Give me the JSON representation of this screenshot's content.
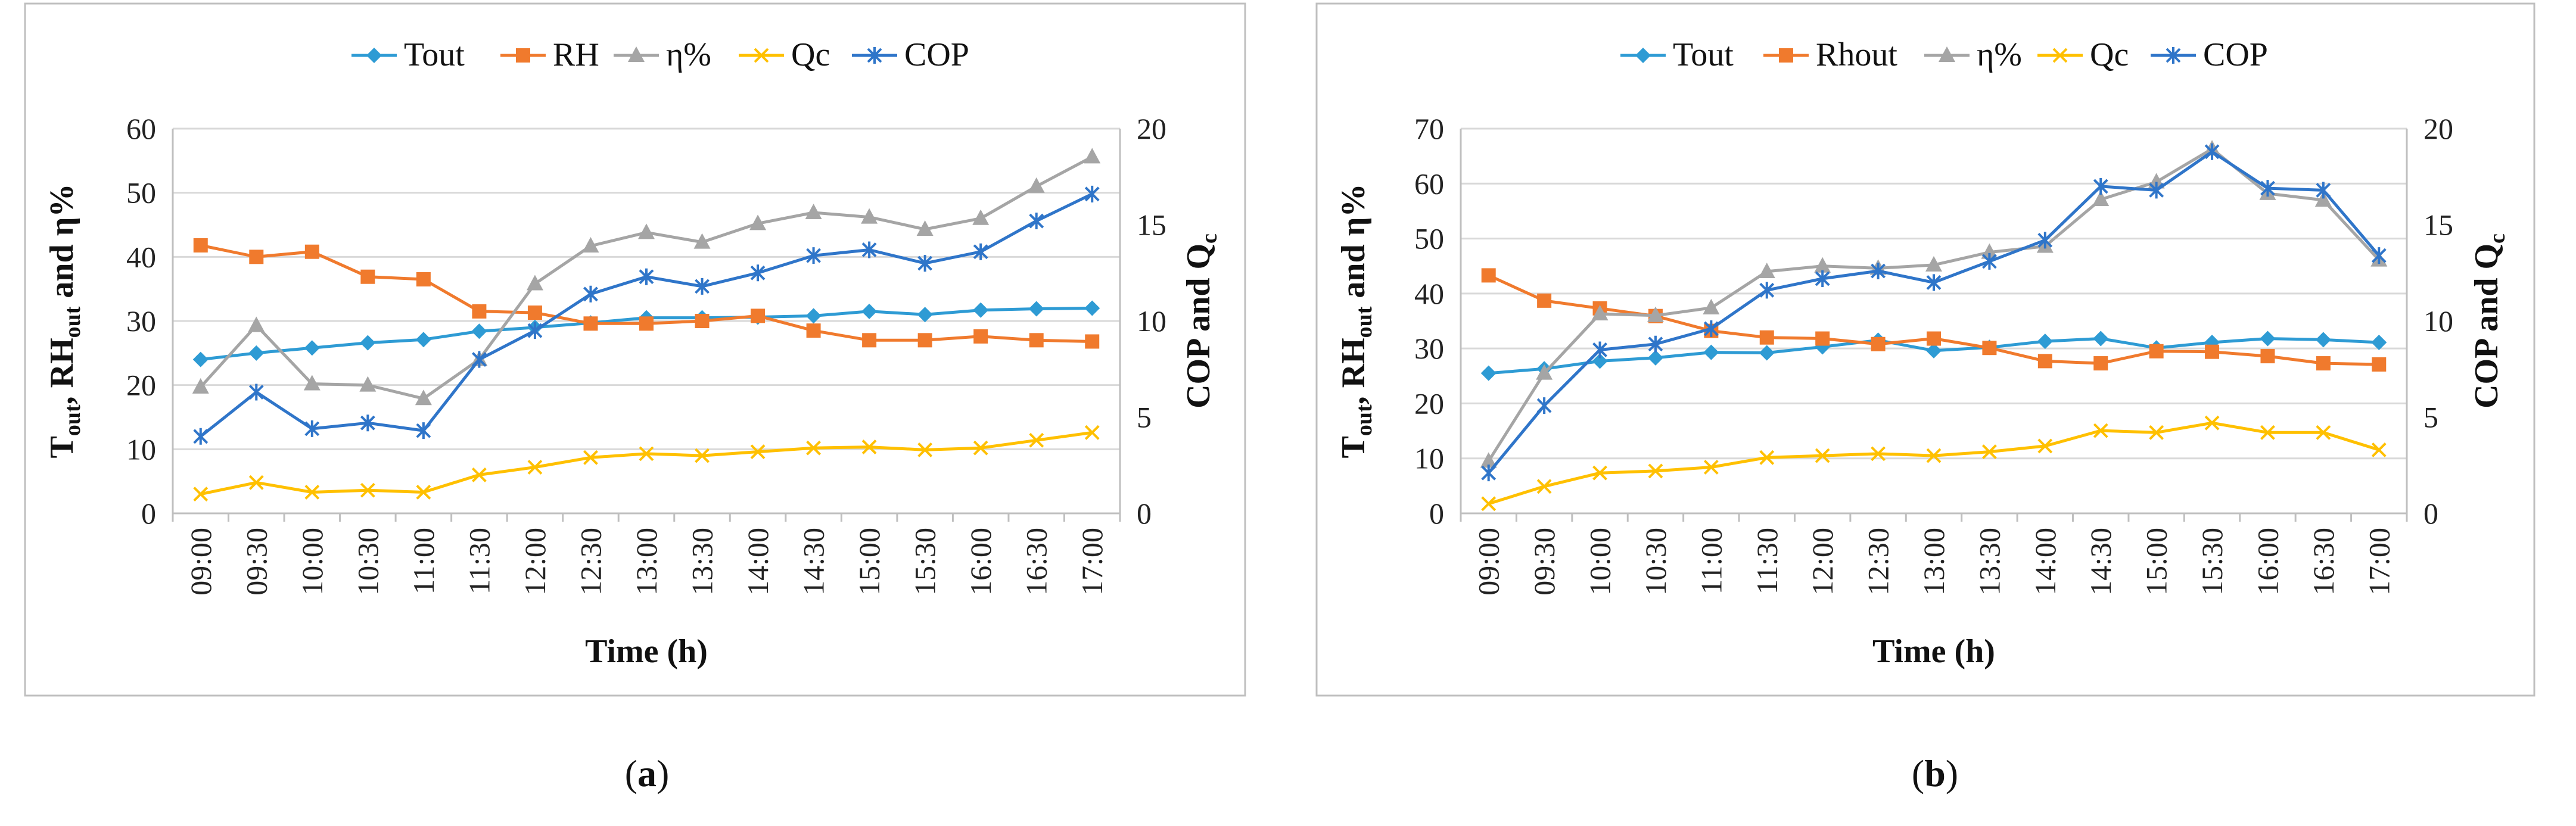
{
  "chart_data": [
    {
      "type": "line",
      "panel_label": "a",
      "categories": [
        "09:00",
        "09:30",
        "10:00",
        "10:30",
        "11:00",
        "11:30",
        "12:00",
        "12:30",
        "13:00",
        "13:30",
        "14:00",
        "14:30",
        "15:00",
        "15:30",
        "16:00",
        "16:30",
        "17:00"
      ],
      "xlabel": "Time (h)",
      "ylabel_left": {
        "parts": [
          "T",
          "out",
          ", RH",
          "out",
          " and η%"
        ]
      },
      "ylabel_right": {
        "parts": [
          "COP and Q",
          "c"
        ]
      },
      "ylim_left": [
        0,
        60
      ],
      "yticks_left": [
        0,
        10,
        20,
        30,
        40,
        50,
        60
      ],
      "ylim_right": [
        0,
        20
      ],
      "yticks_right": [
        0,
        5,
        10,
        15,
        20
      ],
      "legend_position": "top",
      "series": [
        {
          "name": "Tout",
          "axis": "left",
          "color": "#2e9bd4",
          "marker": "diamond",
          "values": [
            24,
            25,
            25.8,
            26.6,
            27.1,
            28.4,
            29,
            29.7,
            30.5,
            30.5,
            30.6,
            30.8,
            31.5,
            31,
            31.7,
            31.9,
            32
          ]
        },
        {
          "name": "RH",
          "axis": "left",
          "color": "#f07a2d",
          "marker": "square",
          "values": [
            41.8,
            40,
            40.8,
            36.9,
            36.5,
            31.5,
            31.3,
            29.6,
            29.6,
            30,
            30.8,
            28.5,
            27,
            27,
            27.6,
            27,
            26.8
          ]
        },
        {
          "name": "η%",
          "axis": "left",
          "color": "#a5a5a5",
          "marker": "triangle",
          "values": [
            19.7,
            29.3,
            20.2,
            20,
            17.9,
            24,
            35.8,
            41.7,
            43.8,
            42.3,
            45.2,
            46.9,
            46.2,
            44.3,
            46,
            51,
            55.6
          ]
        },
        {
          "name": "Qc",
          "axis": "right",
          "color": "#ffc000",
          "marker": "cross",
          "values": [
            1,
            1.6,
            1.1,
            1.2,
            1.1,
            2,
            2.4,
            2.9,
            3.1,
            3,
            3.2,
            3.4,
            3.45,
            3.3,
            3.4,
            3.8,
            4.2
          ]
        },
        {
          "name": "COP",
          "axis": "right",
          "color": "#2f75c9",
          "marker": "asterisk",
          "values": [
            4,
            6.3,
            4.4,
            4.7,
            4.3,
            8,
            9.5,
            11.4,
            12.3,
            11.8,
            12.5,
            13.4,
            13.7,
            13,
            13.6,
            15.2,
            16.6
          ]
        }
      ]
    },
    {
      "type": "line",
      "panel_label": "b",
      "categories": [
        "09:00",
        "09:30",
        "10:00",
        "10:30",
        "11:00",
        "11:30",
        "12:00",
        "12:30",
        "13:00",
        "13:30",
        "14:00",
        "14:30",
        "15:00",
        "15:30",
        "16:00",
        "16:30",
        "17:00"
      ],
      "xlabel": "Time (h)",
      "ylabel_left": {
        "parts": [
          "T",
          "out",
          ", RH",
          "out",
          " and η%"
        ]
      },
      "ylabel_right": {
        "parts": [
          "COP and Q",
          "c"
        ]
      },
      "ylim_left": [
        0,
        70
      ],
      "yticks_left": [
        0,
        10,
        20,
        30,
        40,
        50,
        60,
        70
      ],
      "ylim_right": [
        0,
        20
      ],
      "yticks_right": [
        0,
        5,
        10,
        15,
        20
      ],
      "legend_position": "top",
      "series": [
        {
          "name": "Tout",
          "axis": "left",
          "color": "#2e9bd4",
          "marker": "diamond",
          "values": [
            25.5,
            26.3,
            27.7,
            28.3,
            29.3,
            29.2,
            30.3,
            31.5,
            29.6,
            30.2,
            31.3,
            31.8,
            30.1,
            31.1,
            31.8,
            31.6,
            31.1
          ]
        },
        {
          "name": "Rhout",
          "axis": "left",
          "color": "#f07a2d",
          "marker": "square",
          "values": [
            43.3,
            38.7,
            37.3,
            35.9,
            33.2,
            32,
            31.8,
            30.8,
            31.8,
            30.1,
            27.7,
            27.3,
            29.5,
            29.4,
            28.6,
            27.3,
            27.1
          ]
        },
        {
          "name": "η%",
          "axis": "left",
          "color": "#a5a5a5",
          "marker": "triangle",
          "values": [
            9.5,
            25.5,
            36.3,
            36,
            37.4,
            44,
            45,
            44.6,
            45.2,
            47.5,
            48.6,
            57.1,
            60.3,
            66.3,
            58.2,
            57,
            46.1
          ]
        },
        {
          "name": "Qc",
          "axis": "right",
          "color": "#ffc000",
          "marker": "cross",
          "values": [
            0.5,
            1.4,
            2.1,
            2.2,
            2.4,
            2.9,
            3,
            3.1,
            3,
            3.2,
            3.5,
            4.3,
            4.2,
            4.7,
            4.2,
            4.2,
            3.3
          ]
        },
        {
          "name": "COP",
          "axis": "right",
          "color": "#2f75c9",
          "marker": "asterisk",
          "values": [
            2.1,
            5.6,
            8.5,
            8.8,
            9.6,
            11.6,
            12.2,
            12.6,
            12,
            13.1,
            14.2,
            17,
            16.8,
            18.8,
            16.9,
            16.8,
            13.4
          ]
        }
      ]
    }
  ]
}
